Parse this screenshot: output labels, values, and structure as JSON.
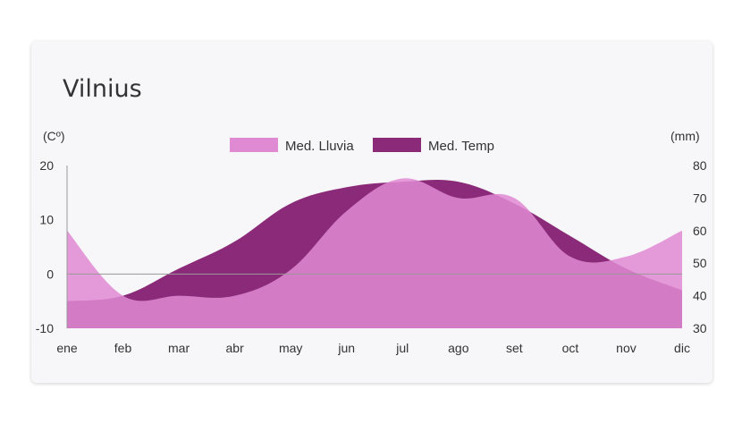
{
  "chart_data": {
    "type": "area",
    "title": "Vilnius",
    "categories": [
      "ene",
      "feb",
      "mar",
      "abr",
      "may",
      "jun",
      "jul",
      "ago",
      "set",
      "oct",
      "nov",
      "dic"
    ],
    "left_axis": {
      "label": "(Cº)",
      "range": [
        -10,
        20
      ],
      "ticks": [
        "20",
        "10",
        "0",
        "-10"
      ]
    },
    "right_axis": {
      "label": "(mm)",
      "range": [
        30,
        80
      ],
      "ticks": [
        "80",
        "70",
        "60",
        "50",
        "40",
        "30"
      ]
    },
    "series": [
      {
        "name": "Med. Lluvia",
        "axis": "right",
        "color": "#e08ad3",
        "values": [
          60,
          40,
          40,
          40,
          48,
          66,
          76,
          70,
          70,
          52,
          52,
          60
        ]
      },
      {
        "name": "Med. Temp",
        "axis": "left",
        "color": "#8a2a78",
        "values": [
          -5,
          -4,
          1,
          6,
          13,
          16,
          17,
          17,
          13,
          7,
          1,
          -3
        ]
      }
    ],
    "legend_position": "top"
  }
}
